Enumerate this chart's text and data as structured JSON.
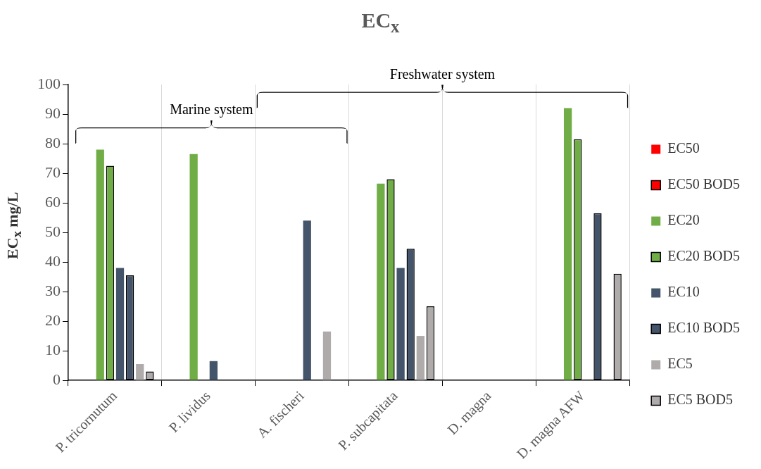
{
  "chart_data": {
    "type": "bar",
    "title": "EC$_{x}$",
    "ylabel": "EC$_{x}$ mg/L",
    "categories": [
      "P. tricornutum",
      "P. lividus",
      "A. fischeri",
      "P. subcapitata",
      "D. magna",
      "D. magna AFW"
    ],
    "series": [
      {
        "name": "EC50",
        "color": "#ff0000",
        "values": [
          null,
          null,
          null,
          null,
          null,
          null
        ]
      },
      {
        "name": "EC50 BOD5",
        "color": "#ff0000",
        "values": [
          null,
          null,
          null,
          null,
          null,
          null
        ]
      },
      {
        "name": "EC20",
        "color": "#70ad47",
        "values": [
          78,
          76.5,
          null,
          66.5,
          null,
          92
        ]
      },
      {
        "name": "EC20 BOD5",
        "color": "#70ad47",
        "values": [
          72.5,
          null,
          null,
          68,
          null,
          81.5
        ]
      },
      {
        "name": "EC10",
        "color": "#44546a",
        "values": [
          38,
          6.5,
          54,
          38,
          null,
          null
        ]
      },
      {
        "name": "EC10 BOD5",
        "color": "#44546a",
        "values": [
          35.5,
          null,
          null,
          44.5,
          null,
          56.5
        ]
      },
      {
        "name": "EC5",
        "color": "#afabab",
        "values": [
          5.5,
          null,
          16.5,
          15,
          null,
          null
        ]
      },
      {
        "name": "EC5 BOD5",
        "color": "#afabab",
        "values": [
          3,
          null,
          null,
          25,
          null,
          36
        ]
      }
    ],
    "ylim": [
      0,
      100
    ],
    "yticks": [
      0,
      10,
      20,
      30,
      40,
      50,
      60,
      70,
      80,
      90,
      100
    ],
    "grid": "x",
    "legend": "right",
    "annotations": [
      "Marine system",
      "Freshwater system"
    ]
  }
}
